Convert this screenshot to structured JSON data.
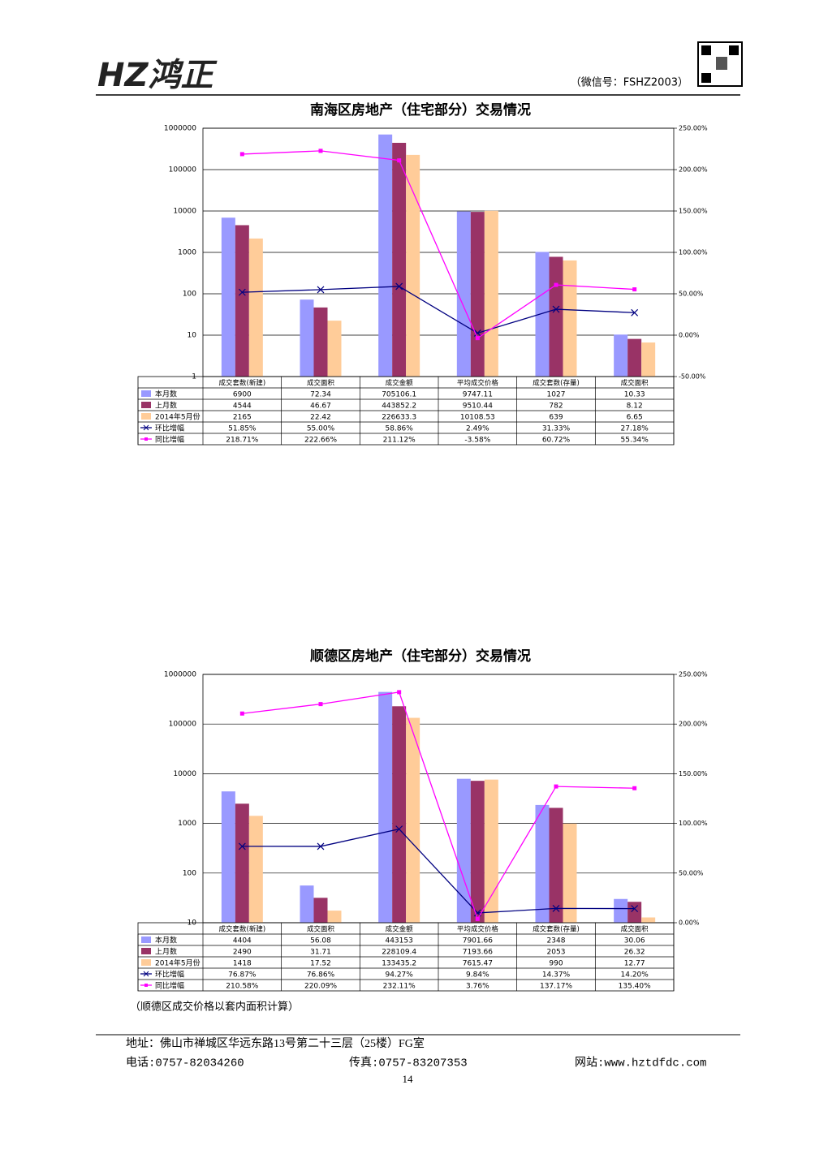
{
  "header": {
    "logo": "HZ鸿正",
    "wechat": "（微信号：FSHZ2003）"
  },
  "chart_data": [
    {
      "type": "bar",
      "title": "南海区房地产（住宅部分）交易情况",
      "categories": [
        "成交套数(新建)",
        "成交面积",
        "成交金额",
        "平均成交价格",
        "成交套数(存量)",
        "成交面积"
      ],
      "series": [
        {
          "name": "本月数",
          "color": "#9999ff",
          "values": [
            6900,
            72.34,
            705106.1,
            9747.11,
            1027,
            10.33
          ]
        },
        {
          "name": "上月数",
          "color": "#993366",
          "values": [
            4544,
            46.67,
            443852.2,
            9510.44,
            782,
            8.12
          ]
        },
        {
          "name": "2014年5月份",
          "color": "#ffcc99",
          "values": [
            2165,
            22.42,
            226633.3,
            10108.53,
            639,
            6.65
          ]
        },
        {
          "name": "环比增幅",
          "color": "#000080",
          "axis": "y2",
          "marker": "x",
          "values": [
            51.85,
            55.0,
            58.86,
            2.49,
            31.33,
            27.18
          ],
          "value_labels": [
            "51.85%",
            "55.00%",
            "58.86%",
            "2.49%",
            "31.33%",
            "27.18%"
          ]
        },
        {
          "name": "同比增幅",
          "color": "#ff00ff",
          "axis": "y2",
          "marker": "square",
          "values": [
            218.71,
            222.66,
            211.12,
            -3.58,
            60.72,
            55.34
          ],
          "value_labels": [
            "218.71%",
            "222.66%",
            "211.12%",
            "-3.58%",
            "60.72%",
            "55.34%"
          ]
        }
      ],
      "log_scale": true,
      "grid": true,
      "ylim": [
        1,
        1000000
      ],
      "yticks": [
        1,
        10,
        100,
        1000,
        10000,
        100000,
        1000000
      ],
      "y2lim": [
        -50,
        250
      ],
      "y2ticks": [
        {
          "value": -50,
          "label": "-50.00%"
        },
        {
          "value": 0,
          "label": "0.00%"
        },
        {
          "value": 50,
          "label": "50.00%"
        },
        {
          "value": 100,
          "label": "100.00%"
        },
        {
          "value": 150,
          "label": "150.00%"
        },
        {
          "value": 200,
          "label": "200.00%"
        },
        {
          "value": 250,
          "label": "250.00%"
        }
      ]
    },
    {
      "type": "bar",
      "title": "顺德区房地产（住宅部分）交易情况",
      "categories": [
        "成交套数(新建)",
        "成交面积",
        "成交金额",
        "平均成交价格",
        "成交套数(存量)",
        "成交面积"
      ],
      "series": [
        {
          "name": "本月数",
          "color": "#9999ff",
          "values": [
            4404,
            56.08,
            443153,
            7901.66,
            2348,
            30.06
          ]
        },
        {
          "name": "上月数",
          "color": "#993366",
          "values": [
            2490,
            31.71,
            228109.4,
            7193.66,
            2053,
            26.32
          ]
        },
        {
          "name": "2014年5月份",
          "color": "#ffcc99",
          "values": [
            1418,
            17.52,
            133435.2,
            7615.47,
            990,
            12.77
          ]
        },
        {
          "name": "环比增幅",
          "color": "#000080",
          "axis": "y2",
          "marker": "x",
          "values": [
            76.87,
            76.86,
            94.27,
            9.84,
            14.37,
            14.2
          ],
          "value_labels": [
            "76.87%",
            "76.86%",
            "94.27%",
            "9.84%",
            "14.37%",
            "14.20%"
          ]
        },
        {
          "name": "同比增幅",
          "color": "#ff00ff",
          "axis": "y2",
          "marker": "square",
          "values": [
            210.58,
            220.09,
            232.11,
            3.76,
            137.17,
            135.4
          ],
          "value_labels": [
            "210.58%",
            "220.09%",
            "232.11%",
            "3.76%",
            "137.17%",
            "135.40%"
          ]
        }
      ],
      "log_scale": true,
      "grid": true,
      "ylim": [
        10,
        1000000
      ],
      "yticks": [
        10,
        100,
        1000,
        10000,
        100000,
        1000000
      ],
      "y2lim": [
        0,
        250
      ],
      "y2ticks": [
        {
          "value": 0,
          "label": "0.00%"
        },
        {
          "value": 50,
          "label": "50.00%"
        },
        {
          "value": 100,
          "label": "100.00%"
        },
        {
          "value": 150,
          "label": "150.00%"
        },
        {
          "value": 200,
          "label": "200.00%"
        },
        {
          "value": 250,
          "label": "250.00%"
        }
      ]
    }
  ],
  "note": "（顺德区成交价格以套内面积计算）",
  "footer": {
    "address": "地址：佛山市禅城区华远东路13号第二十三层（25楼）FG室",
    "phone": "电话:0757-82034260",
    "fax": "传真:0757-83207353",
    "website": "网站:www.hztdfdc.com",
    "page": "14"
  }
}
